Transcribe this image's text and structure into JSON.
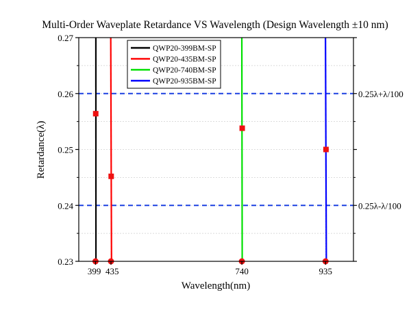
{
  "chart_data": {
    "type": "line",
    "title": "Multi-Order Waveplate Retardance VS Wavelength (Design Wavelength ±10 nm)",
    "xlabel": "Wavelength(nm)",
    "ylabel": "Retardance(λ)",
    "xlim": [
      360,
      1000
    ],
    "ylim": [
      0.23,
      0.27
    ],
    "x_ticks": [
      399,
      435,
      740,
      935
    ],
    "y_ticks": [
      0.23,
      0.24,
      0.25,
      0.26,
      0.27
    ],
    "y_tick_labels": [
      "0.23",
      "0.24",
      "0.25",
      "0.26",
      "0.27"
    ],
    "grid": true,
    "legend_position": "top-center",
    "series": [
      {
        "name": "QWP20-399BM-SP",
        "color": "#000000",
        "line": [
          [
            400.0,
            0.23
          ],
          [
            399.8,
            0.27
          ]
        ],
        "marker": [
          399.5,
          0.2564
        ],
        "base_dot": [
          399,
          0.23
        ]
      },
      {
        "name": "QWP20-435BM-SP",
        "color": "#ff0000",
        "line": [
          [
            436.3,
            0.23
          ],
          [
            434.5,
            0.27
          ]
        ],
        "marker": [
          435.5,
          0.2452
        ],
        "base_dot": [
          435,
          0.23
        ]
      },
      {
        "name": "QWP20-740BM-SP",
        "color": "#00e000",
        "line": [
          [
            740.8,
            0.23
          ],
          [
            739.9,
            0.27
          ]
        ],
        "marker": [
          740.8,
          0.2538
        ],
        "base_dot": [
          740,
          0.23
        ]
      },
      {
        "name": "QWP20-935BM-SP",
        "color": "#0000ff",
        "line": [
          [
            936.8,
            0.23
          ],
          [
            934.8,
            0.27
          ]
        ],
        "marker": [
          936.0,
          0.25
        ],
        "base_dot": [
          935,
          0.23
        ]
      }
    ],
    "reference_lines": [
      {
        "y": 0.26,
        "label": "0.25λ+λ/100",
        "color": "#1a3fe0"
      },
      {
        "y": 0.24,
        "label": "0.25λ-λ/100",
        "color": "#1a3fe0"
      }
    ]
  }
}
